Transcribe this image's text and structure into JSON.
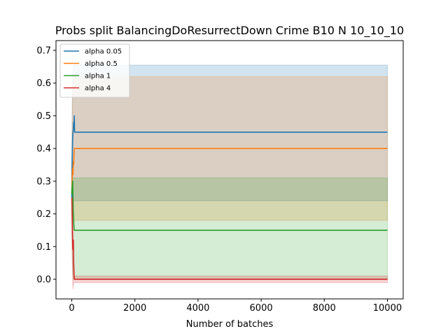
{
  "chart_data": {
    "type": "line",
    "title": "Probs split BalancingDoResurrectDown Crime B10 N 10_10_10",
    "xlabel": "Number of batches",
    "ylabel": "",
    "xlim": [
      -500,
      10500
    ],
    "ylim": [
      -0.06,
      0.73
    ],
    "xticks": [
      0,
      2000,
      4000,
      6000,
      8000,
      10000
    ],
    "xtick_labels": [
      "0",
      "2000",
      "4000",
      "6000",
      "8000",
      "10000"
    ],
    "yticks": [
      0.0,
      0.1,
      0.2,
      0.3,
      0.4,
      0.5,
      0.6,
      0.7
    ],
    "ytick_labels": [
      "0.0",
      "0.1",
      "0.2",
      "0.3",
      "0.4",
      "0.5",
      "0.6",
      "0.7"
    ],
    "grid": false,
    "legend_position": "top-left",
    "series": [
      {
        "name": "alpha 0.05",
        "color": "#1f77b4",
        "x": [
          0,
          10,
          20,
          30,
          40,
          50,
          60,
          70,
          80,
          90,
          100,
          10000
        ],
        "y": [
          0.25,
          0.35,
          0.4,
          0.44,
          0.45,
          0.46,
          0.48,
          0.47,
          0.5,
          0.45,
          0.45,
          0.45
        ],
        "band_lower": [
          0.2,
          0.24,
          0.24,
          0.24,
          0.24,
          0.24,
          0.24,
          0.24,
          0.24,
          0.24,
          0.24,
          0.24
        ],
        "band_upper": [
          0.3,
          0.5,
          0.58,
          0.62,
          0.64,
          0.65,
          0.655,
          0.655,
          0.655,
          0.655,
          0.655,
          0.655
        ]
      },
      {
        "name": "alpha 0.5",
        "color": "#ff7f0e",
        "x": [
          0,
          10,
          20,
          30,
          40,
          50,
          60,
          70,
          80,
          90,
          100,
          10000
        ],
        "y": [
          0.26,
          0.3,
          0.33,
          0.34,
          0.32,
          0.36,
          0.35,
          0.38,
          0.4,
          0.4,
          0.4,
          0.4
        ],
        "band_lower": [
          0.2,
          0.18,
          0.18,
          0.18,
          0.18,
          0.18,
          0.18,
          0.18,
          0.18,
          0.18,
          0.18,
          0.18
        ],
        "band_upper": [
          0.32,
          0.45,
          0.52,
          0.56,
          0.58,
          0.6,
          0.61,
          0.62,
          0.62,
          0.62,
          0.62,
          0.62
        ]
      },
      {
        "name": "alpha 1",
        "color": "#2ca02c",
        "x": [
          0,
          10,
          20,
          30,
          40,
          50,
          60,
          70,
          80,
          90,
          100,
          10000
        ],
        "y": [
          0.26,
          0.28,
          0.29,
          0.3,
          0.24,
          0.2,
          0.18,
          0.16,
          0.15,
          0.15,
          0.15,
          0.15
        ],
        "band_lower": [
          0.2,
          0.1,
          0.05,
          0.02,
          0.01,
          0.0,
          0.0,
          0.0,
          0.0,
          0.0,
          0.0,
          0.0
        ],
        "band_upper": [
          0.32,
          0.32,
          0.31,
          0.31,
          0.31,
          0.31,
          0.31,
          0.31,
          0.31,
          0.31,
          0.31,
          0.31
        ]
      },
      {
        "name": "alpha 4",
        "color": "#d62728",
        "x": [
          0,
          10,
          20,
          30,
          40,
          50,
          60,
          70,
          80,
          90,
          100,
          10000
        ],
        "y": [
          0.25,
          0.22,
          0.15,
          0.1,
          0.09,
          0.12,
          0.05,
          0.02,
          0.0,
          0.0,
          0.0,
          0.0
        ],
        "band_lower": [
          0.2,
          0.1,
          0.03,
          -0.01,
          -0.03,
          -0.02,
          -0.01,
          -0.01,
          -0.01,
          -0.01,
          -0.01,
          -0.01
        ],
        "band_upper": [
          0.3,
          0.3,
          0.26,
          0.2,
          0.14,
          0.1,
          0.05,
          0.03,
          0.01,
          0.01,
          0.01,
          0.01
        ]
      }
    ]
  }
}
